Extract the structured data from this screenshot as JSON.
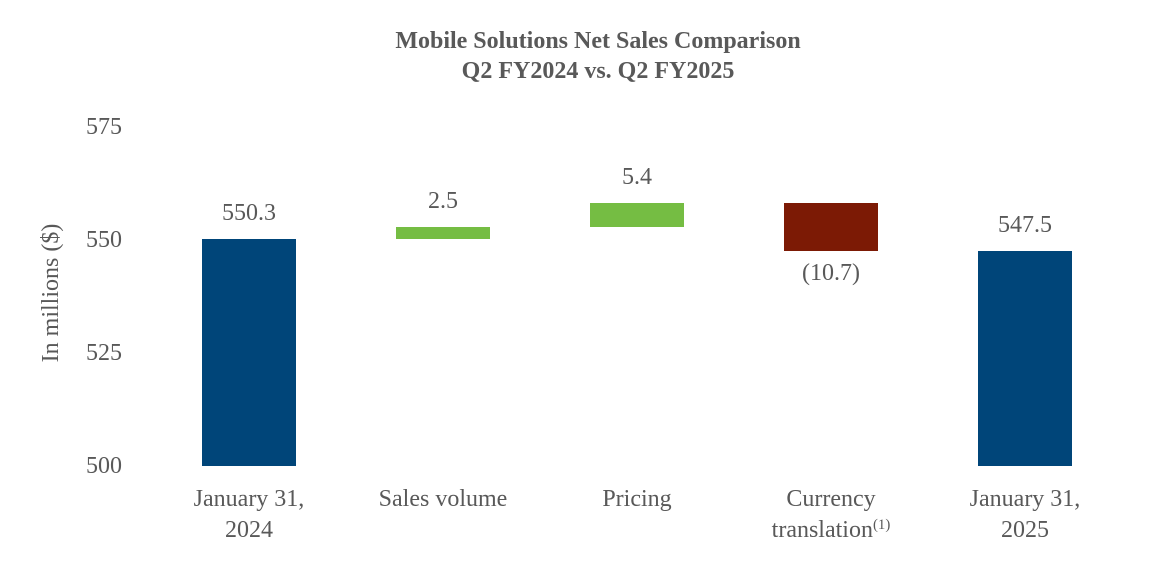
{
  "title": {
    "line1": "Mobile Solutions Net Sales Comparison",
    "line2": "Q2 FY2024 vs. Q2 FY2025"
  },
  "chart_data": {
    "type": "waterfall",
    "title": "Mobile Solutions Net Sales Comparison Q2 FY2024 vs. Q2 FY2025",
    "ylabel": "In millions ($)",
    "ylim": [
      500,
      575
    ],
    "yticks": [
      575,
      550,
      525,
      500
    ],
    "grid": false,
    "legend": false,
    "bars": [
      {
        "category_lines": [
          "January 31,",
          "2024"
        ],
        "category_superscript": "",
        "value": 550.3,
        "value_label": "550.3",
        "start": 500,
        "end": 550.3,
        "kind": "total",
        "label_position": "above"
      },
      {
        "category_lines": [
          "Sales volume"
        ],
        "category_superscript": "",
        "value": 2.5,
        "value_label": "2.5",
        "start": 550.3,
        "end": 552.8,
        "kind": "increase",
        "label_position": "above"
      },
      {
        "category_lines": [
          "Pricing"
        ],
        "category_superscript": "",
        "value": 5.4,
        "value_label": "5.4",
        "start": 552.8,
        "end": 558.2,
        "kind": "increase",
        "label_position": "above"
      },
      {
        "category_lines": [
          "Currency",
          "translation"
        ],
        "category_superscript": "(1)",
        "value": -10.7,
        "value_label": "(10.7)",
        "start": 558.2,
        "end": 547.5,
        "kind": "decrease",
        "label_position": "below"
      },
      {
        "category_lines": [
          "January 31,",
          "2025"
        ],
        "category_superscript": "",
        "value": 547.5,
        "value_label": "547.5",
        "start": 500,
        "end": 547.5,
        "kind": "total",
        "label_position": "above"
      }
    ],
    "colors": {
      "total": "#004579",
      "increase": "#75BD43",
      "decrease": "#7C1A05",
      "text": "#595959"
    }
  }
}
